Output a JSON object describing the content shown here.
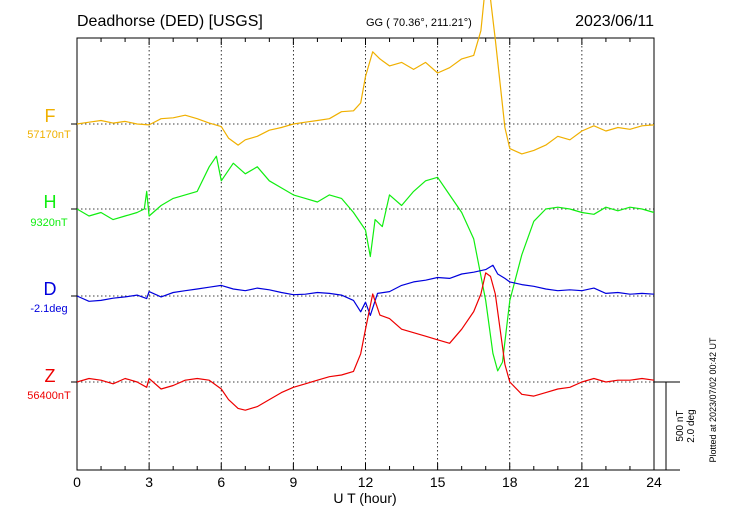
{
  "header": {
    "station": "Deadhorse (DED)  [USGS]",
    "coords": "GG ( 70.36°, 211.21°)",
    "date": "2023/06/11"
  },
  "footer": {
    "plotted": "Plotted at 2023/07/02 00:42 UT"
  },
  "scale": {
    "nt": "500 nT",
    "deg": "2.0 deg"
  },
  "colors": {
    "F": "#f0b000",
    "H": "#10ee10",
    "D": "#0000dd",
    "Z": "#ee0000"
  },
  "chart_data": {
    "type": "line",
    "title": "Deadhorse (DED)  [USGS]",
    "xlabel": "U T (hour)",
    "ylabel": "",
    "xlim": [
      0,
      24
    ],
    "xticks": [
      "0",
      "3",
      "6",
      "9",
      "12",
      "15",
      "18",
      "21",
      "24"
    ],
    "grid": true,
    "scale_bar": "500 nT / 2.0 deg",
    "series": [
      {
        "name": "F",
        "baseline_label": "57170nT",
        "unit": "nT",
        "x": [
          0,
          0.5,
          1,
          1.5,
          2,
          2.5,
          3,
          3.5,
          4,
          4.5,
          5,
          5.5,
          6,
          6.3,
          6.7,
          7,
          7.5,
          8,
          8.5,
          9,
          9.5,
          10,
          10.5,
          11,
          11.5,
          11.8,
          12,
          12.3,
          12.6,
          13,
          13.5,
          14,
          14.5,
          15,
          15.5,
          16,
          16.5,
          16.8,
          17,
          17.2,
          17.4,
          17.6,
          17.8,
          18,
          18.5,
          19,
          19.5,
          20,
          20.5,
          21,
          21.5,
          22,
          22.5,
          23,
          23.5,
          24
        ],
        "y": [
          57170,
          57180,
          57190,
          57175,
          57185,
          57170,
          57165,
          57200,
          57205,
          57220,
          57200,
          57175,
          57155,
          57090,
          57050,
          57080,
          57100,
          57135,
          57150,
          57170,
          57180,
          57190,
          57200,
          57240,
          57245,
          57290,
          57440,
          57580,
          57540,
          57500,
          57520,
          57480,
          57520,
          57460,
          57490,
          57540,
          57560,
          57700,
          57970,
          57880,
          57650,
          57400,
          57150,
          57030,
          57000,
          57020,
          57050,
          57100,
          57080,
          57130,
          57160,
          57130,
          57150,
          57140,
          57160,
          57165
        ]
      },
      {
        "name": "H",
        "baseline_label": "9320nT",
        "unit": "nT",
        "x": [
          0,
          0.5,
          1,
          1.5,
          2,
          2.5,
          2.8,
          2.9,
          3,
          3.5,
          4,
          4.5,
          5,
          5.5,
          5.8,
          6,
          6.5,
          7,
          7.5,
          8,
          8.5,
          9,
          9.5,
          10,
          10.5,
          11,
          11.5,
          12,
          12.2,
          12.4,
          12.7,
          13,
          13.5,
          14,
          14.5,
          15,
          15.5,
          16,
          16.5,
          17,
          17.3,
          17.5,
          17.7,
          18,
          18.5,
          19,
          19.5,
          20,
          20.5,
          21,
          21.5,
          22,
          22.5,
          23,
          23.5,
          24
        ],
        "y": [
          9320,
          9280,
          9300,
          9260,
          9280,
          9300,
          9320,
          9420,
          9280,
          9340,
          9380,
          9400,
          9420,
          9560,
          9620,
          9480,
          9580,
          9520,
          9560,
          9480,
          9440,
          9400,
          9380,
          9360,
          9400,
          9380,
          9300,
          9200,
          9050,
          9260,
          9220,
          9400,
          9340,
          9420,
          9480,
          9500,
          9400,
          9300,
          9150,
          8800,
          8500,
          8400,
          8450,
          8800,
          9060,
          9250,
          9320,
          9330,
          9320,
          9300,
          9290,
          9330,
          9310,
          9330,
          9320,
          9300
        ]
      },
      {
        "name": "D",
        "baseline_label": "-2.1deg",
        "unit": "deg",
        "x": [
          0,
          0.5,
          1,
          1.5,
          2,
          2.5,
          2.9,
          3,
          3.5,
          4,
          4.5,
          5,
          5.5,
          6,
          6.5,
          7,
          7.5,
          8,
          8.5,
          9,
          9.5,
          10,
          10.5,
          11,
          11.5,
          11.8,
          12,
          12.2,
          12.5,
          13,
          13.5,
          14,
          14.5,
          15,
          15.5,
          16,
          16.5,
          17,
          17.3,
          17.5,
          17.8,
          18,
          18.5,
          19,
          19.5,
          20,
          20.5,
          21,
          21.5,
          22,
          22.5,
          23,
          23.5,
          24
        ],
        "y": [
          -2.1,
          -2.22,
          -2.2,
          -2.15,
          -2.12,
          -2.08,
          -2.16,
          -2.0,
          -2.12,
          -2.02,
          -1.98,
          -1.94,
          -1.9,
          -1.86,
          -1.94,
          -1.98,
          -1.92,
          -1.96,
          -2.02,
          -2.07,
          -2.06,
          -2.02,
          -2.04,
          -2.08,
          -2.2,
          -2.46,
          -2.24,
          -2.54,
          -2.04,
          -2.0,
          -1.86,
          -1.78,
          -1.74,
          -1.68,
          -1.7,
          -1.6,
          -1.56,
          -1.5,
          -1.4,
          -1.6,
          -1.7,
          -1.78,
          -1.84,
          -1.88,
          -1.94,
          -1.98,
          -1.96,
          -1.98,
          -1.92,
          -2.04,
          -2.02,
          -2.06,
          -2.04,
          -2.06
        ]
      },
      {
        "name": "Z",
        "baseline_label": "56400nT",
        "unit": "nT",
        "x": [
          0,
          0.5,
          1,
          1.5,
          2,
          2.5,
          2.9,
          3,
          3.5,
          4,
          4.5,
          5,
          5.5,
          6,
          6.3,
          6.7,
          7,
          7.5,
          8,
          8.5,
          9,
          9.5,
          10,
          10.5,
          11,
          11.5,
          11.8,
          12,
          12.3,
          12.6,
          13,
          13.5,
          14,
          14.5,
          15,
          15.5,
          16,
          16.5,
          16.8,
          17,
          17.2,
          17.4,
          17.6,
          17.8,
          18,
          18.5,
          19,
          19.5,
          20,
          20.5,
          21,
          21.5,
          22,
          22.5,
          23,
          23.5,
          24
        ],
        "y": [
          56400,
          56420,
          56410,
          56390,
          56420,
          56400,
          56370,
          56420,
          56360,
          56380,
          56410,
          56420,
          56410,
          56360,
          56300,
          56250,
          56240,
          56260,
          56300,
          56340,
          56370,
          56390,
          56410,
          56430,
          56440,
          56460,
          56560,
          56700,
          56900,
          56780,
          56760,
          56700,
          56680,
          56660,
          56640,
          56620,
          56700,
          56800,
          56900,
          57020,
          57000,
          56900,
          56700,
          56500,
          56400,
          56330,
          56320,
          56340,
          56360,
          56370,
          56400,
          56420,
          56400,
          56410,
          56410,
          56420,
          56410
        ]
      }
    ]
  }
}
